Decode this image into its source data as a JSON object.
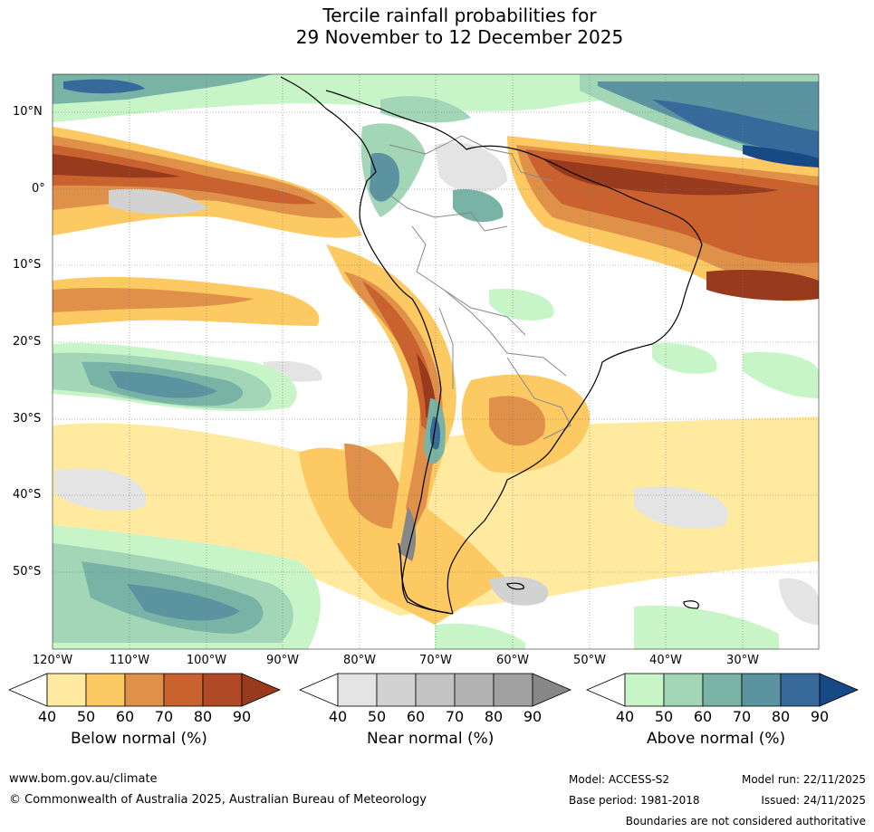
{
  "title": {
    "line1": "Tercile rainfall probabilities for",
    "line2": "29 November to 12 December 2025"
  },
  "map": {
    "lat_labels": [
      "10°N",
      "0°",
      "10°S",
      "20°S",
      "30°S",
      "40°S",
      "50°S"
    ],
    "lon_labels": [
      "120°W",
      "110°W",
      "100°W",
      "90°W",
      "80°W",
      "70°W",
      "60°W",
      "50°W",
      "40°W",
      "30°W"
    ]
  },
  "colorbars": {
    "below": {
      "label": "Below normal (%)",
      "ticks": [
        "40",
        "50",
        "60",
        "70",
        "80",
        "90"
      ],
      "colors": [
        "#ffeaa0",
        "#fdc963",
        "#e09149",
        "#c9622e",
        "#b04a26",
        "#983a1e"
      ]
    },
    "near": {
      "label": "Near normal (%)",
      "ticks": [
        "40",
        "50",
        "60",
        "70",
        "80",
        "90"
      ],
      "colors": [
        "#e4e4e4",
        "#d2d2d2",
        "#c3c3c3",
        "#b2b2b2",
        "#a1a1a1",
        "#878787"
      ]
    },
    "above": {
      "label": "Above normal (%)",
      "ticks": [
        "40",
        "50",
        "60",
        "70",
        "80",
        "90"
      ],
      "colors": [
        "#c8f5c8",
        "#a2d6b7",
        "#78b3a6",
        "#5b93a0",
        "#376a9b",
        "#174a85"
      ]
    }
  },
  "footer": {
    "website": "www.bom.gov.au/climate",
    "copyright": "© Commonwealth of Australia 2025, Australian Bureau of Meteorology",
    "model": "Model: ACCESS-S2",
    "model_run": "Model run: 22/11/2025",
    "base_period": "Base period: 1981-2018",
    "issued": "Issued: 24/11/2025",
    "disclaimer": "Boundaries are not considered authoritative"
  }
}
